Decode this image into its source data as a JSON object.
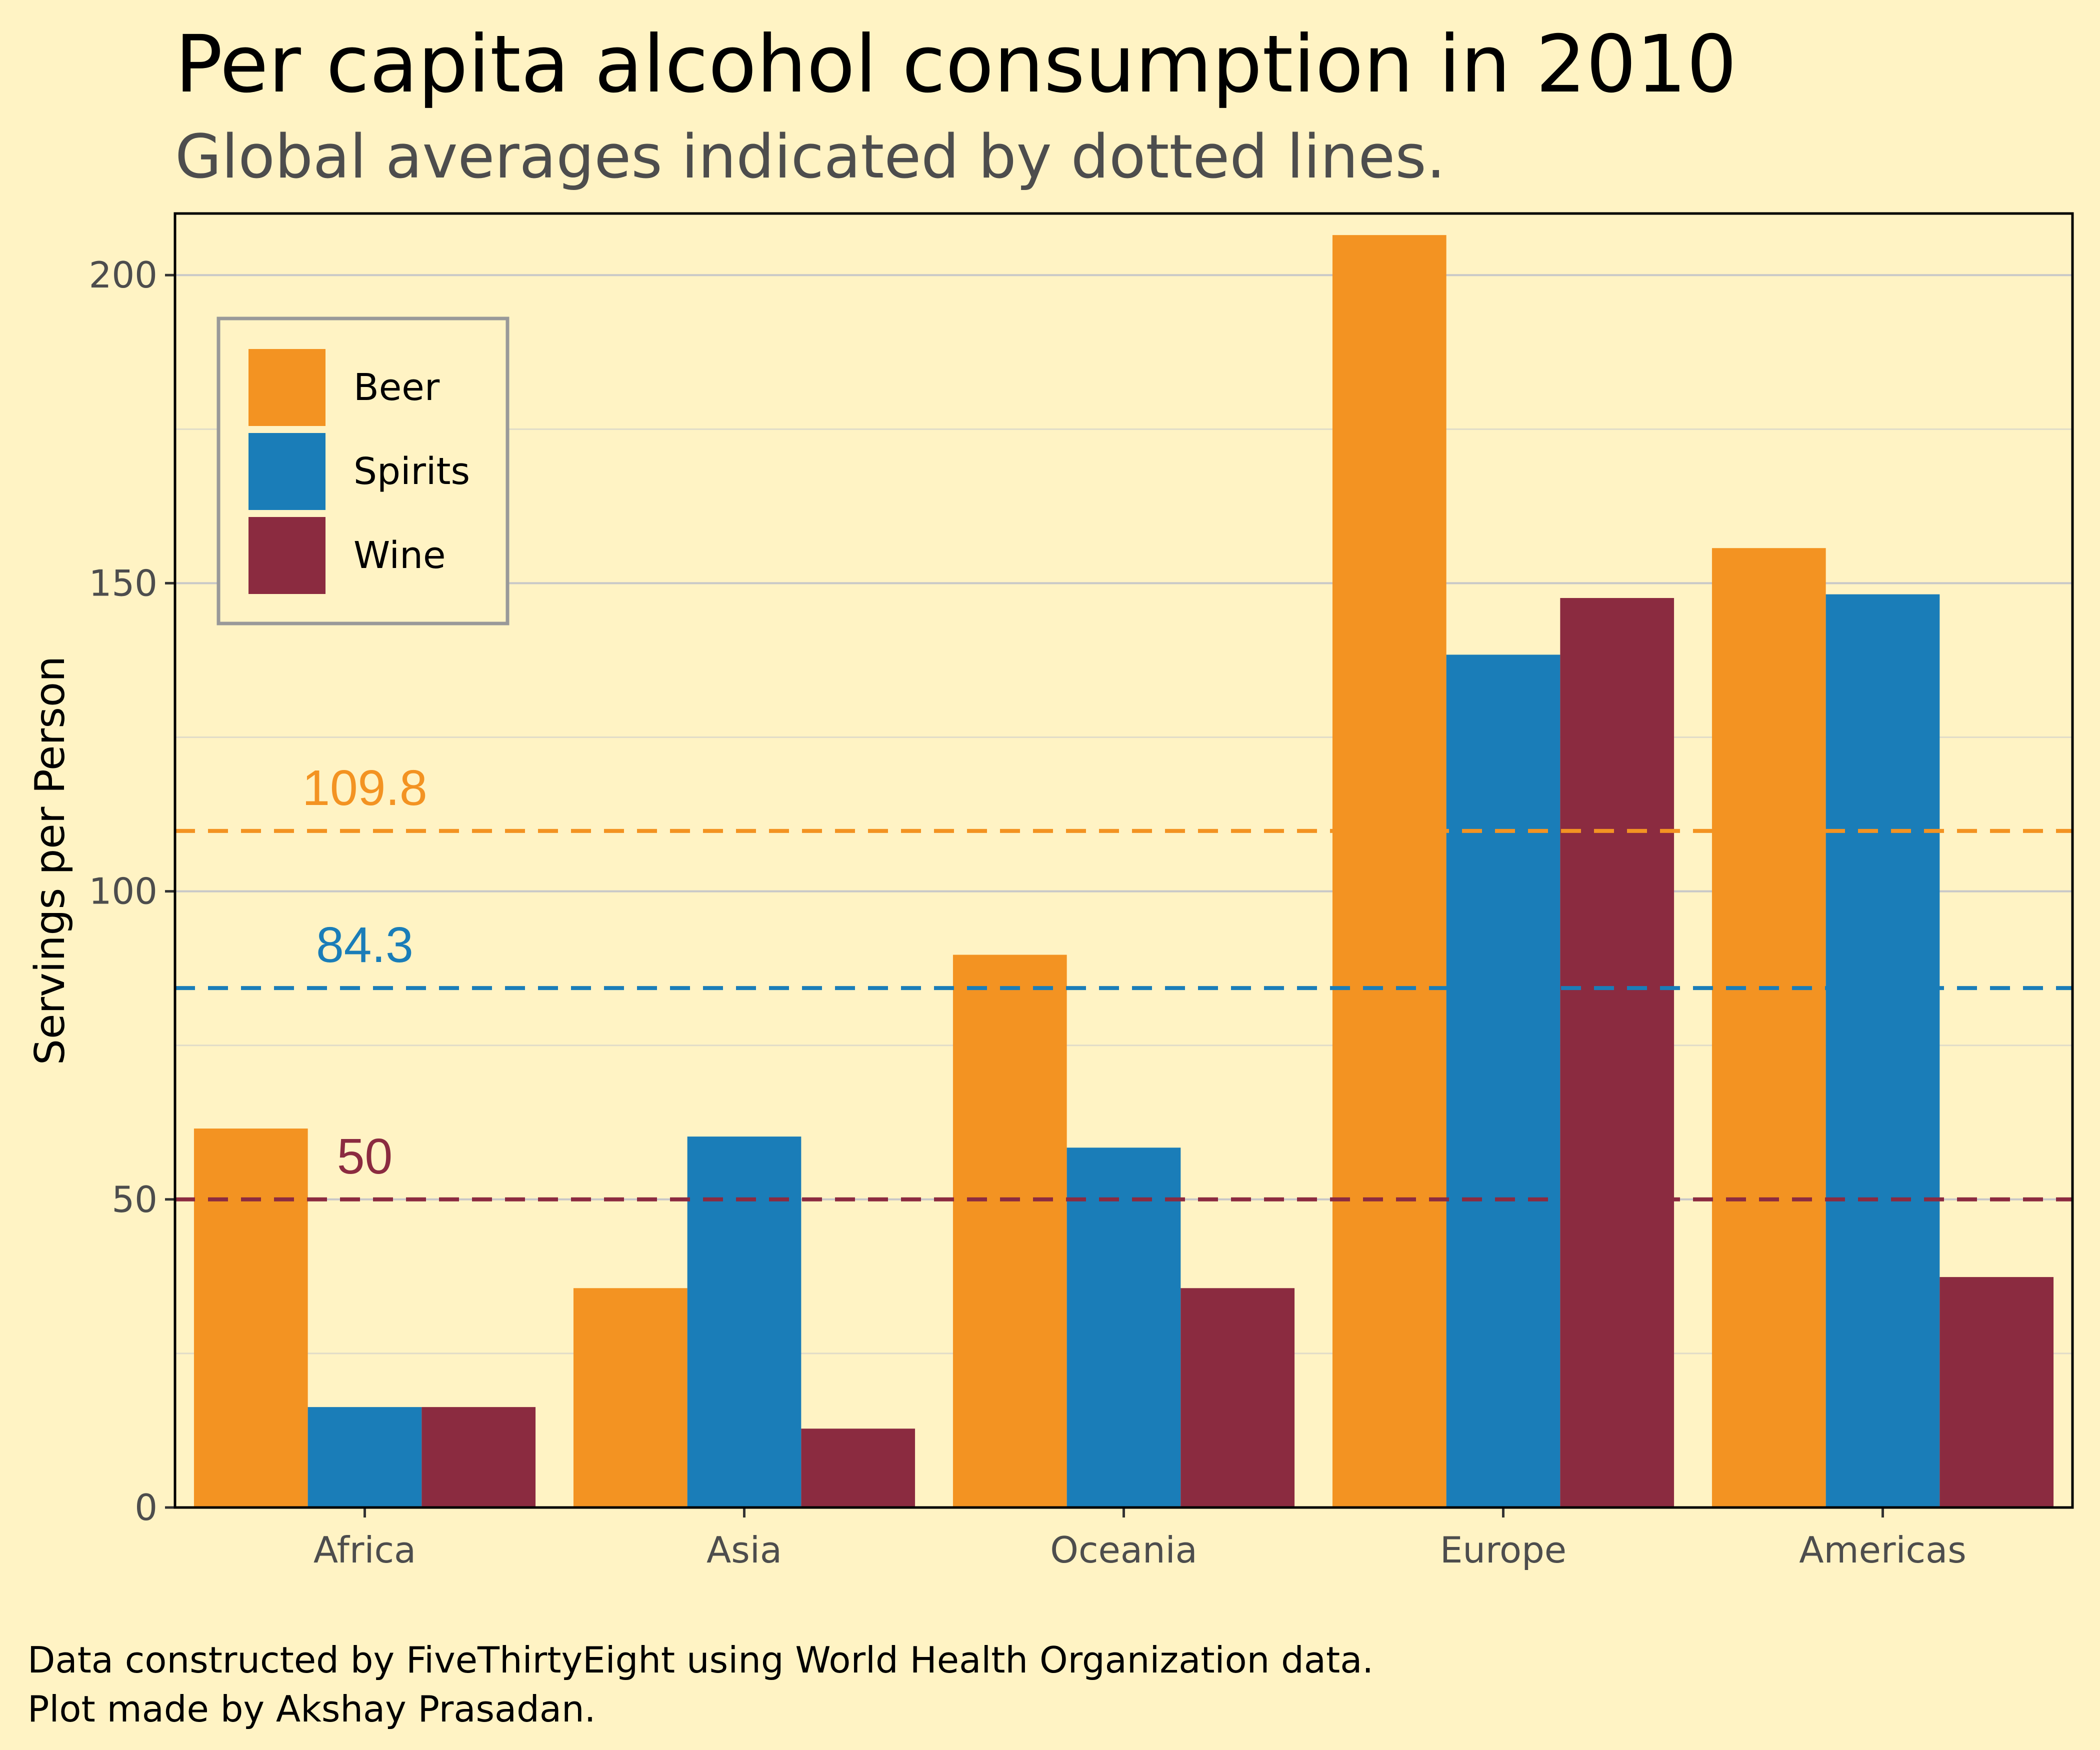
{
  "colors": {
    "background": "#fff3c4",
    "beer": "#f39322",
    "spirits": "#1a7db8",
    "wine": "#8b2b40",
    "grid": "#c8c8c8",
    "text_dark": "#000000",
    "text_grey": "#4d4d4d"
  },
  "chart_data": {
    "type": "bar",
    "title": "Per capita alcohol consumption in 2010",
    "subtitle": "Global averages indicated by dotted lines.",
    "xlabel": "",
    "ylabel": "Servings per Person",
    "categories": [
      "Africa",
      "Asia",
      "Oceania",
      "Europe",
      "Americas"
    ],
    "series": [
      {
        "name": "Beer",
        "color": "#f39322",
        "values": [
          61.5,
          35.6,
          89.7,
          206.5,
          155.7
        ]
      },
      {
        "name": "Spirits",
        "color": "#1a7db8",
        "values": [
          16.3,
          60.2,
          58.4,
          138.4,
          148.2
        ]
      },
      {
        "name": "Wine",
        "color": "#8b2b40",
        "values": [
          16.3,
          12.8,
          35.6,
          147.6,
          37.4
        ]
      }
    ],
    "reference_lines": [
      {
        "label": "109.8",
        "value": 109.8,
        "color": "#f39322",
        "label_category": "Africa"
      },
      {
        "label": "84.3",
        "value": 84.3,
        "color": "#1a7db8",
        "label_category": "Africa"
      },
      {
        "label": "50",
        "value": 50,
        "color": "#8b2b40",
        "label_category": "Africa"
      }
    ],
    "ylim": [
      0,
      210
    ],
    "yticks": [
      0,
      50,
      100,
      150,
      200
    ],
    "ytick_labels": [
      "0",
      "50",
      "100",
      "150",
      "200"
    ],
    "grid": true,
    "legend_position": "top-left"
  },
  "caption": {
    "line1": "Data constructed by FiveThirtyEight using World Health Organization data.",
    "line2": "Plot made by Akshay Prasadan."
  }
}
